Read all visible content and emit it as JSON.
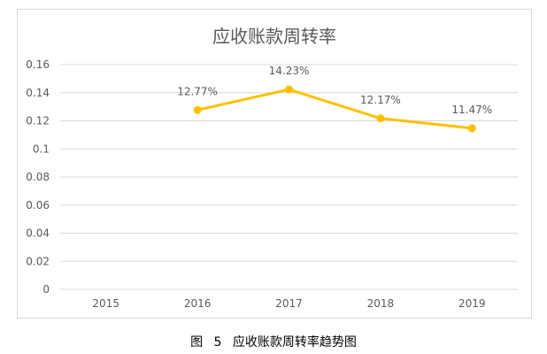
{
  "chart_data": {
    "type": "line",
    "title": "应收账款周转率",
    "categories": [
      "2015",
      "2016",
      "2017",
      "2018",
      "2019"
    ],
    "series": [
      {
        "values": [
          null,
          0.1277,
          0.1423,
          0.1217,
          0.1147
        ],
        "data_labels": [
          "",
          "12.77%",
          "14.23%",
          "12.17%",
          "11.47%"
        ],
        "color": "#FFC000"
      }
    ],
    "y_ticks": [
      "0",
      "0.02",
      "0.04",
      "0.06",
      "0.08",
      "0.1",
      "0.12",
      "0.14",
      "0.16"
    ],
    "ylim": [
      0,
      0.16
    ],
    "grid": true,
    "legend": "none"
  },
  "caption": {
    "figure_label": "图",
    "figure_number": "5",
    "text": "应收账款周转率趋势图"
  }
}
